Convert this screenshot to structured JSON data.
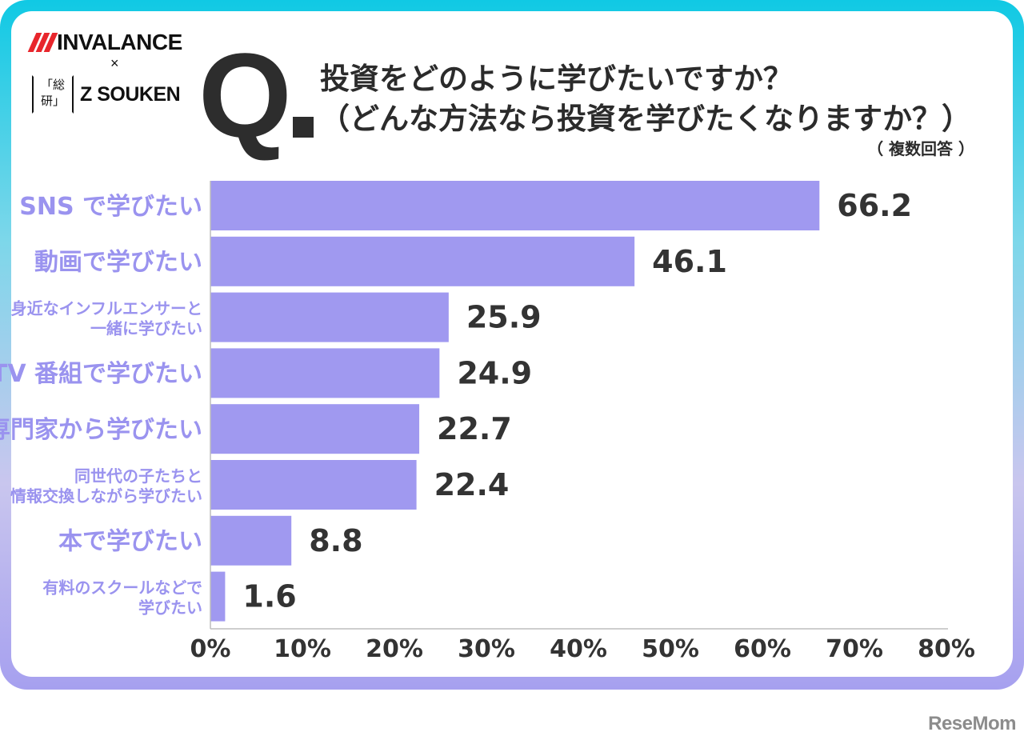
{
  "brand": {
    "invalance": "INVALANCE",
    "times": "×",
    "souken_mark_line1": "「総",
    "souken_mark_line2": "研」",
    "souken": "Z SOUKEN"
  },
  "question": {
    "q": "Q",
    "line1": "投資をどのように学びたいですか？",
    "line2": "（どんな方法なら投資を学びたくなりますか？）",
    "note": "（ 複数回答 ）"
  },
  "chart_data": {
    "type": "bar",
    "orientation": "horizontal",
    "categories": [
      [
        "SNS で学びたい"
      ],
      [
        "動画で学びたい"
      ],
      [
        "身近なインフルエンサーと",
        "一緒に学びたい"
      ],
      [
        "TV 番組で学びたい"
      ],
      [
        "専門家から学びたい"
      ],
      [
        "同世代の子たちと",
        "情報交換しながら学びたい"
      ],
      [
        "本で学びたい"
      ],
      [
        "有料のスクールなどで",
        "学びたい"
      ]
    ],
    "values": [
      66.2,
      46.1,
      25.9,
      24.9,
      22.7,
      22.4,
      8.8,
      1.6
    ],
    "value_labels": [
      "66.2",
      "46.1",
      "25.9",
      "24.9",
      "22.7",
      "22.4",
      "8.8",
      "1.6"
    ],
    "xlim": [
      0,
      80
    ],
    "x_ticks": [
      "0%",
      "10%",
      "20%",
      "30%",
      "40%",
      "50%",
      "60%",
      "70%",
      "80%"
    ],
    "grid": false,
    "bar_color": "#a099f0",
    "label_color": "#9a93ef"
  },
  "footer": {
    "logo": "ReseMom"
  },
  "colors": {
    "frame_top": "#10c9e4",
    "frame_bottom": "#a6a0ef",
    "title": "#2b2b2b"
  }
}
